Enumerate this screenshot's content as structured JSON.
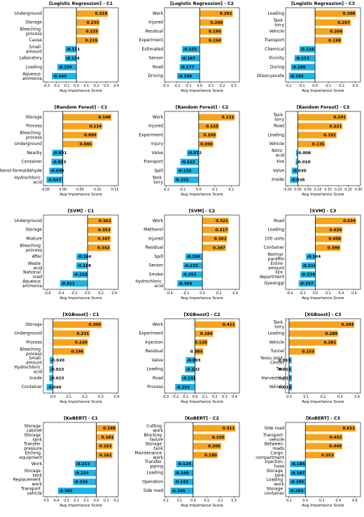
{
  "bar_colors": [
    "#f9a31b",
    "#f9a31b",
    "#f9a31b",
    "#f9a31b",
    "#1bb3ea",
    "#1bb3ea",
    "#1bb3ea",
    "#1bb3ea"
  ],
  "chart_data": [
    {
      "type": "barh",
      "title": "[Logistic Regression] - C1",
      "x_label": "Avg Importance Score",
      "categories": [
        "Underground",
        "Storage",
        "Bleaching process",
        "Cause",
        "Small amount",
        "Laboratory",
        "Loading",
        "Aqueous ammonia"
      ],
      "values": [
        0.318,
        0.233,
        0.225,
        0.219,
        -0.111,
        -0.114,
        -0.19,
        -0.245
      ],
      "value_labels": [
        "0.318",
        "0.233",
        "0.225",
        "0.219",
        "-0.111",
        "-0.114",
        "-0.190",
        "-0.245"
      ],
      "xlim": [
        -0.33,
        0.42
      ],
      "xticks": [
        -0.3,
        -0.2,
        -0.1,
        {
          "value": 0,
          "label": "0.0"
        },
        0.1,
        0.2,
        0.3,
        0.4
      ]
    },
    {
      "type": "barh",
      "title": "[Logistic Regression] - C2",
      "x_label": "Avg Importance Score",
      "categories": [
        "Work",
        "Injured",
        "Residual",
        "Experiment",
        "Estimated",
        "Sensor",
        "Road",
        "Driving"
      ],
      "values": [
        0.292,
        0.209,
        0.195,
        0.194,
        -0.155,
        -0.167,
        -0.177,
        -0.198
      ],
      "value_labels": [
        "0.292",
        "0.209",
        "0.195",
        "0.194",
        "-0.155",
        "-0.167",
        "-0.177",
        "-0.198"
      ],
      "xlim": [
        -0.31,
        0.35
      ],
      "xticks": [
        -0.3,
        -0.2,
        -0.1,
        {
          "value": 0,
          "label": "0.0"
        },
        0.1,
        0.2,
        0.3
      ]
    },
    {
      "type": "barh",
      "title": "[Logistic Regression] - C3",
      "x_label": "Avg Importance Score",
      "categories": [
        "Loading",
        "Tank lorry",
        "Vehicle",
        "Transport",
        "Chemical",
        "Vicinity",
        "During",
        "Diisocyanate"
      ],
      "values": [
        0.306,
        0.267,
        0.209,
        0.198,
        -0.116,
        -0.153,
        -0.18,
        -0.195
      ],
      "value_labels": [
        "0.306",
        "0.267",
        "0.209",
        "0.198",
        "-0.116",
        "-0.153",
        "-0.180",
        "-0.195"
      ],
      "xlim": [
        -0.22,
        0.34
      ],
      "xticks": [
        -0.2,
        -0.1,
        {
          "value": 0,
          "label": "0.0"
        },
        0.1,
        0.2,
        0.3
      ]
    },
    {
      "type": "barh",
      "title": "[Random Forest] - C1",
      "x_label": "Avg Importance Score",
      "categories": [
        "Storage",
        "Process",
        "Bleaching process",
        "Underground",
        "Nearby",
        "Container",
        "Phenol-formaldehyde",
        "Hydrochloric acid"
      ],
      "values": [
        0.14,
        0.114,
        0.099,
        0.086,
        -0.031,
        -0.033,
        -0.039,
        -0.047
      ],
      "value_labels": [
        "0.140",
        "0.114",
        "0.099",
        "0.086",
        "-0.031",
        "-0.033",
        "-0.039",
        "-0.047"
      ],
      "xlim": [
        -0.056,
        0.16
      ],
      "xticks": [
        -0.05,
        {
          "value": 0,
          "label": "0.00"
        },
        0.05,
        {
          "value": 0.1,
          "label": "0.10"
        },
        0.15
      ]
    },
    {
      "type": "barh",
      "title": "[Random Forest] - C2",
      "x_label": "Avg Importance Score",
      "categories": [
        "Work",
        "Injured",
        "Experiment",
        "Injury",
        "Valve",
        "Transport",
        "Spill",
        "Tank lorry"
      ],
      "values": [
        0.222,
        0.125,
        0.109,
        0.09,
        -0.072,
        -0.113,
        -0.135,
        -0.152
      ],
      "value_labels": [
        "0.222",
        "0.125",
        "0.109",
        "0.090",
        "-0.072",
        "-0.113",
        "-0.135",
        "-0.152"
      ],
      "xlim": [
        -0.21,
        0.25
      ],
      "xticks": [
        -0.2,
        -0.1,
        {
          "value": 0,
          "label": "0.0"
        },
        0.1,
        0.2
      ]
    },
    {
      "type": "barh",
      "title": "[Random Forest] - C3",
      "x_label": "Avg Importance Score",
      "categories": [
        "Tank lorry",
        "Road",
        "Loading",
        "Vehicle",
        "Nitric acid",
        "Fire",
        "Valve",
        "Inside"
      ],
      "values": [
        0.241,
        0.221,
        0.192,
        0.135,
        -0.008,
        -0.01,
        -0.03,
        -0.038
      ],
      "value_labels": [
        "0.241",
        "0.221",
        "0.192",
        "0.135",
        "-0.008",
        "-0.010",
        "-0.030",
        "-0.038"
      ],
      "xlim": [
        -0.06,
        0.31
      ],
      "xticks": [
        -0.05,
        {
          "value": 0,
          "label": "0.00"
        },
        0.05,
        {
          "value": 0.1,
          "label": "0.10"
        },
        0.15,
        {
          "value": 0.2,
          "label": "0.20"
        },
        0.25,
        {
          "value": 0.3,
          "label": "0.30"
        }
      ]
    },
    {
      "type": "barh",
      "title": "[SVM] - C1",
      "x_label": "Avg Importance Score",
      "categories": [
        "Underground",
        "Storage",
        "Mixture",
        "Bleaching process",
        "After",
        "Waste acid",
        "National road",
        "Aqueous ammonia"
      ],
      "values": [
        0.362,
        0.353,
        0.347,
        0.342,
        -0.164,
        -0.168,
        -0.223,
        -0.411
      ],
      "value_labels": [
        "0.362",
        "0.353",
        "0.347",
        "0.342",
        "-0.164",
        "-0.168",
        "-0.223",
        "-0.411"
      ],
      "xlim": [
        -0.66,
        0.46
      ],
      "xticks": [
        -0.6,
        -0.4,
        -0.2,
        {
          "value": 0,
          "label": "0.0"
        },
        0.2,
        0.4
      ]
    },
    {
      "type": "barh",
      "title": "[SVM] - C2",
      "x_label": "Avg Importance Score",
      "categories": [
        "Work",
        "Methanol",
        "Injured",
        "Residual",
        "Spill",
        "Sensor",
        "Smoke",
        "Hydrochloric acid"
      ],
      "values": [
        0.321,
        0.317,
        0.302,
        0.287,
        -0.204,
        -0.233,
        -0.252,
        -0.304
      ],
      "value_labels": [
        "0.321",
        "0.317",
        "0.302",
        "0.287",
        "-0.204",
        "-0.233",
        "-0.252",
        "-0.304"
      ],
      "xlim": [
        -0.46,
        0.45
      ],
      "xticks": [
        -0.4,
        -0.2,
        {
          "value": 0,
          "label": "0.0"
        },
        0.2,
        0.4
      ]
    },
    {
      "type": "barh",
      "title": "[SVM] - C3",
      "x_label": "Avg Importance Score",
      "categories": [
        "Road",
        "Loading",
        "100 units",
        "Container",
        "Normal paraffin",
        "Entire amount",
        "Fire department",
        "Gyeonggi"
      ],
      "values": [
        0.634,
        0.42,
        0.408,
        0.39,
        -0.144,
        -0.214,
        -0.234,
        -0.257
      ],
      "value_labels": [
        "0.634",
        "0.420",
        "0.408",
        "0.390",
        "-0.144",
        "-0.214",
        "-0.234",
        "-0.257"
      ],
      "xlim": [
        -0.46,
        0.7
      ],
      "xticks": [
        -0.4,
        -0.2,
        {
          "value": 0,
          "label": "0.0"
        },
        0.2,
        0.4,
        0.6
      ]
    },
    {
      "type": "barh",
      "title": "[XGBoost] - C1",
      "x_label": "Avg Importance Score",
      "categories": [
        "Storage",
        "Underground",
        "Process",
        "Bleaching process",
        "Small amount",
        "Hydrochloric acid",
        "Inside",
        "Container"
      ],
      "values": [
        0.306,
        0.231,
        0.22,
        0.196,
        -0.02,
        -0.023,
        -0.023,
        -0.04
      ],
      "value_labels": [
        "0.306",
        "0.231",
        "0.220",
        "0.196",
        "-0.020",
        "-0.023",
        "-0.023",
        "-0.040"
      ],
      "xlim": [
        -0.06,
        0.41
      ],
      "xticks": [
        {
          "value": 0,
          "label": "0.0"
        },
        0.1,
        0.2,
        0.3,
        0.4
      ]
    },
    {
      "type": "barh",
      "title": "[XGBoost] - C2",
      "x_label": "Avg Importance Score",
      "categories": [
        "Work",
        "Experiment",
        "Injection",
        "Residual",
        "Valve",
        "Loading",
        "Road",
        "Process"
      ],
      "values": [
        0.411,
        0.184,
        0.128,
        0.084,
        -0.093,
        -0.102,
        -0.141,
        -0.202
      ],
      "value_labels": [
        "0.411",
        "0.184",
        "0.128",
        "0.084",
        "-0.093",
        "-0.102",
        "-0.141",
        "-0.202"
      ],
      "xlim": [
        -0.31,
        0.45
      ],
      "xticks": [
        -0.3,
        -0.2,
        -0.1,
        {
          "value": 0,
          "label": "0.0"
        },
        0.1,
        0.2,
        0.3,
        0.4
      ]
    },
    {
      "type": "barh",
      "title": "[XGBoost] - C3",
      "x_label": "Avg Importance Score",
      "categories": [
        "Tank lorry",
        "Loading",
        "Vehicle",
        "Tunnel",
        "Yeosu Joint Center",
        "Taxi",
        "Harvesting",
        "Vehicle"
      ],
      "values": [
        0.384,
        0.289,
        0.281,
        0.153,
        0.015,
        0.016,
        0.017,
        0.018
      ],
      "value_labels": [
        "0.384",
        "0.289",
        "0.281",
        "0.153",
        "0.015",
        "0.016",
        "0.017",
        "0.018"
      ],
      "xlim": [
        -0.02,
        0.42
      ],
      "xticks": [
        {
          "value": 0,
          "label": "0.0"
        },
        0.1,
        0.2,
        0.3,
        0.4
      ]
    },
    {
      "type": "barh",
      "title": "[KoBERT] - C1",
      "x_label": "Avg Importance Score",
      "categories": [
        "Storage cabinet",
        "Storage tank",
        "Transfer pressure",
        "Etching equipment",
        "Work",
        "Storage tank",
        "Replacement work",
        "Transport vehicle"
      ],
      "values": [
        0.198,
        0.181,
        0.162,
        0.162,
        -0.213,
        -0.224,
        -0.234,
        -0.385
      ],
      "value_labels": [
        "0.198",
        "0.181",
        "0.162",
        "0.162",
        "-0.213",
        "-0.224",
        "-0.234",
        "-0.385"
      ],
      "xlim": [
        -0.53,
        0.22
      ],
      "xticks": [
        {
          "value": -0.5,
          "label": "0.5"
        },
        {
          "value": -0.4,
          "label": "0.4"
        },
        {
          "value": -0.3,
          "label": "0.3"
        },
        {
          "value": -0.2,
          "label": "0.2"
        },
        {
          "value": -0.1,
          "label": "0.1"
        },
        {
          "value": 0,
          "label": "0.0"
        },
        0.1,
        0.2
      ]
    },
    {
      "type": "barh",
      "title": "[KoBERT] - C2",
      "x_label": "Avg Importance Score",
      "categories": [
        "Cutting work",
        "Blocking failure",
        "Storage tank",
        "Maintenance work",
        "Transfer piping",
        "Loading",
        "Operation",
        "Side road"
      ],
      "values": [
        0.311,
        0.235,
        0.206,
        0.18,
        -0.124,
        -0.14,
        -0.143,
        -0.165
      ],
      "value_labels": [
        "0.311",
        "0.235",
        "0.206",
        "0.180",
        "-0.124",
        "-0.140",
        "-0.143",
        "-0.165"
      ],
      "xlim": [
        -0.21,
        0.34
      ],
      "xticks": [
        {
          "value": -0.2,
          "label": "0.2"
        },
        {
          "value": -0.1,
          "label": "0.1"
        },
        {
          "value": 0,
          "label": "0.0"
        },
        0.1,
        0.2,
        0.3
      ]
    },
    {
      "type": "barh",
      "title": "[KoBERT] - C3",
      "x_label": "Avg Importance Score",
      "categories": [
        "Side road",
        "Transport vehicle",
        "Between roads",
        "Cargo compartment",
        "Injection hose",
        "Storage tank",
        "Loading work",
        "Storage container"
      ],
      "values": [
        0.611,
        0.452,
        0.449,
        0.353,
        -0.185,
        -0.187,
        -0.195,
        -0.203
      ],
      "value_labels": [
        "0.611",
        "0.452",
        "0.449",
        "0.353",
        "-0.185",
        "-0.187",
        "-0.195",
        "-0.203"
      ],
      "xlim": [
        -0.24,
        0.67
      ],
      "xticks": [
        {
          "value": -0.2,
          "label": "0.2"
        },
        {
          "value": 0,
          "label": "0.0"
        },
        0.2,
        0.4,
        0.6
      ]
    }
  ]
}
